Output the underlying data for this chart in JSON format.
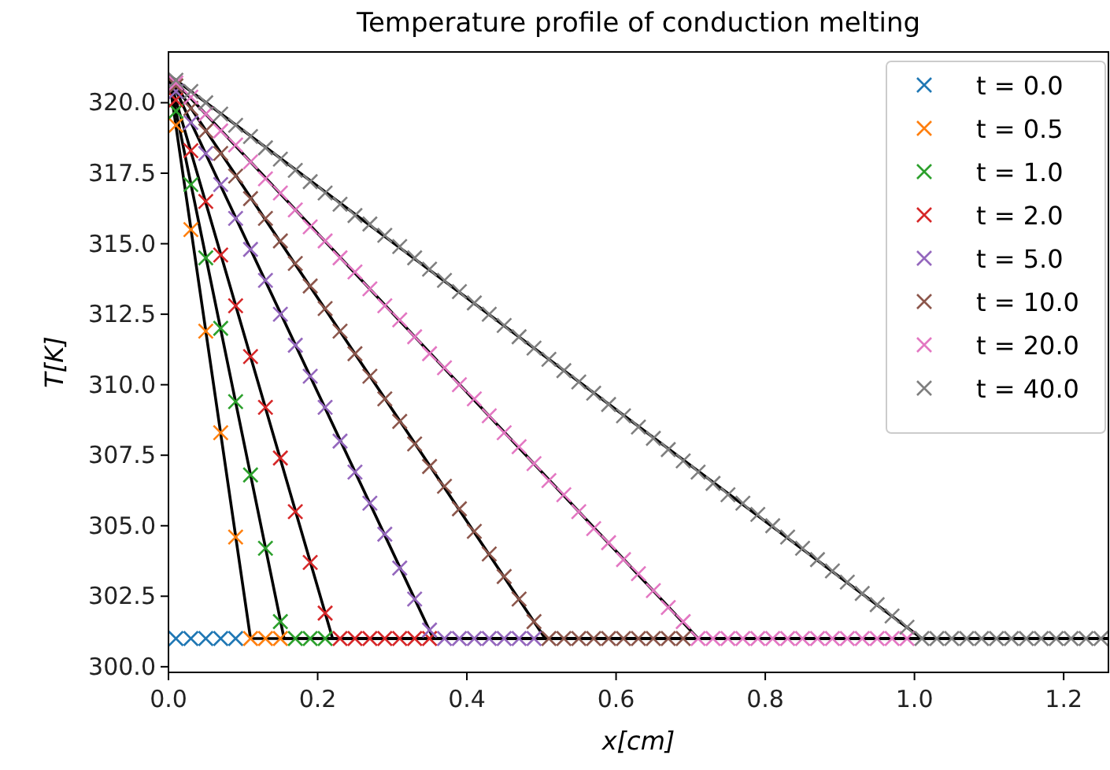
{
  "chart_data": {
    "type": "scatter",
    "title": "Temperature profile of conduction melting",
    "xlabel": "x[cm]",
    "ylabel": "T[K]",
    "legend": "top right",
    "grid": false,
    "xlim": [
      0,
      1.26
    ],
    "ylim": [
      299.8,
      321.8
    ],
    "xticks": [
      {
        "value": 0,
        "label": "0.0"
      },
      {
        "value": 0.2,
        "label": "0.2"
      },
      {
        "value": 0.4,
        "label": "0.4"
      },
      {
        "value": 0.6,
        "label": "0.6"
      },
      {
        "value": 0.8,
        "label": "0.8"
      },
      {
        "value": 1,
        "label": "1.0"
      },
      {
        "value": 1.2,
        "label": "1.2"
      }
    ],
    "yticks": [
      {
        "value": 300,
        "label": "300.0"
      },
      {
        "value": 302.5,
        "label": "302.5"
      },
      {
        "value": 305,
        "label": "305.0"
      },
      {
        "value": 307.5,
        "label": "307.5"
      },
      {
        "value": 310,
        "label": "310.0"
      },
      {
        "value": 312.5,
        "label": "312.5"
      },
      {
        "value": 315,
        "label": "315.0"
      },
      {
        "value": 317.5,
        "label": "317.5"
      },
      {
        "value": 320,
        "label": "320.0"
      }
    ],
    "x": [
      0.01,
      0.03,
      0.05,
      0.07,
      0.09,
      0.11,
      0.13,
      0.15,
      0.17,
      0.19,
      0.21,
      0.23,
      0.25,
      0.27,
      0.29,
      0.31,
      0.33,
      0.35,
      0.37,
      0.39,
      0.41,
      0.43,
      0.45,
      0.47,
      0.49,
      0.51,
      0.53,
      0.55,
      0.57,
      0.59,
      0.61,
      0.63,
      0.65,
      0.67,
      0.69,
      0.71,
      0.73,
      0.75,
      0.77,
      0.79,
      0.81,
      0.83,
      0.85,
      0.87,
      0.89,
      0.91,
      0.93,
      0.95,
      0.97,
      0.99,
      1.01,
      1.03,
      1.05,
      1.07,
      1.09,
      1.11,
      1.13,
      1.15,
      1.17,
      1.19,
      1.21,
      1.23,
      1.25
    ],
    "series": [
      {
        "type": "line",
        "color": "#000000",
        "x": [
          0,
          0.11,
          1.26
        ],
        "values": [
          321,
          301,
          301
        ]
      },
      {
        "type": "line",
        "color": "#000000",
        "x": [
          0,
          0.155,
          1.26
        ],
        "values": [
          321,
          301,
          301
        ]
      },
      {
        "type": "line",
        "color": "#000000",
        "x": [
          0,
          0.22,
          1.26
        ],
        "values": [
          321,
          301,
          301
        ]
      },
      {
        "type": "line",
        "color": "#000000",
        "x": [
          0,
          0.355,
          1.26
        ],
        "values": [
          321,
          301,
          301
        ]
      },
      {
        "type": "line",
        "color": "#000000",
        "x": [
          0,
          0.505,
          1.26
        ],
        "values": [
          321,
          301,
          301
        ]
      },
      {
        "type": "line",
        "color": "#000000",
        "x": [
          0,
          0.71,
          1.26
        ],
        "values": [
          321,
          301,
          301
        ]
      },
      {
        "type": "line",
        "color": "#000000",
        "x": [
          0,
          1.01,
          1.26
        ],
        "values": [
          321,
          301,
          301
        ]
      },
      {
        "name": "t = 0.0",
        "color": "#1f77b4",
        "marker": "cross",
        "values": [
          301,
          301,
          301,
          301,
          301,
          null,
          null,
          null,
          null,
          null,
          null,
          null,
          null,
          null,
          null,
          null,
          null,
          null,
          null,
          null,
          null,
          null,
          null,
          null,
          null,
          null,
          null,
          null,
          null,
          null,
          null,
          null,
          null,
          null,
          null,
          null,
          null,
          null,
          null,
          null,
          null,
          null,
          null,
          null,
          null,
          null,
          null,
          null,
          null,
          null,
          null,
          null,
          null,
          null,
          null,
          null,
          null,
          null,
          null,
          null,
          null,
          null,
          null
        ]
      },
      {
        "name": "t = 0.5",
        "color": "#ff7f0e",
        "marker": "cross",
        "values": [
          319.2,
          315.5,
          311.9,
          308.3,
          304.6,
          301.0,
          301,
          301,
          null,
          null,
          null,
          null,
          null,
          null,
          null,
          null,
          null,
          null,
          null,
          null,
          null,
          null,
          null,
          null,
          null,
          null,
          null,
          null,
          null,
          null,
          null,
          null,
          null,
          null,
          null,
          null,
          null,
          null,
          null,
          null,
          null,
          null,
          null,
          null,
          null,
          null,
          null,
          null,
          null,
          null,
          null,
          null,
          null,
          null,
          null,
          null,
          null,
          null,
          null,
          null,
          null,
          null,
          null
        ]
      },
      {
        "name": "t = 1.0",
        "color": "#2ca02c",
        "marker": "cross",
        "values": [
          319.7,
          317.1,
          314.5,
          312.0,
          309.4,
          306.8,
          304.2,
          301.6,
          301,
          301,
          301,
          null,
          null,
          null,
          null,
          null,
          null,
          null,
          null,
          null,
          null,
          null,
          null,
          null,
          null,
          null,
          null,
          null,
          null,
          null,
          null,
          null,
          null,
          null,
          null,
          null,
          null,
          null,
          null,
          null,
          null,
          null,
          null,
          null,
          null,
          null,
          null,
          null,
          null,
          null,
          null,
          null,
          null,
          null,
          null,
          null,
          null,
          null,
          null,
          null,
          null,
          null,
          null
        ]
      },
      {
        "name": "t = 2.0",
        "color": "#d62728",
        "marker": "cross",
        "values": [
          320.1,
          318.3,
          316.5,
          314.6,
          312.8,
          311.0,
          309.2,
          307.4,
          305.5,
          303.7,
          301.9,
          301,
          301,
          301,
          301,
          301,
          301,
          301,
          null,
          null,
          null,
          null,
          null,
          null,
          null,
          null,
          null,
          null,
          null,
          null,
          null,
          null,
          null,
          null,
          null,
          null,
          null,
          null,
          null,
          null,
          null,
          null,
          null,
          null,
          null,
          null,
          null,
          null,
          null,
          null,
          null,
          null,
          null,
          null,
          null,
          null,
          null,
          null,
          null,
          null,
          null,
          null,
          null
        ]
      },
      {
        "name": "t = 5.0",
        "color": "#9467bd",
        "marker": "cross",
        "values": [
          320.4,
          319.3,
          318.2,
          317.1,
          315.9,
          314.8,
          313.7,
          312.5,
          311.4,
          310.3,
          309.2,
          308.0,
          306.9,
          305.8,
          304.7,
          303.5,
          302.4,
          301.3,
          301,
          301,
          301,
          301,
          301,
          301,
          301,
          null,
          null,
          null,
          null,
          null,
          null,
          null,
          null,
          null,
          null,
          null,
          null,
          null,
          null,
          null,
          null,
          null,
          null,
          null,
          null,
          null,
          null,
          null,
          null,
          null,
          null,
          null,
          null,
          null,
          null,
          null,
          null,
          null,
          null,
          null,
          null,
          null,
          null
        ]
      },
      {
        "name": "t = 10.0",
        "color": "#8c564b",
        "marker": "cross",
        "values": [
          320.6,
          319.8,
          319.0,
          318.2,
          317.4,
          316.6,
          315.9,
          315.1,
          314.3,
          313.5,
          312.7,
          311.9,
          311.1,
          310.3,
          309.5,
          308.7,
          307.9,
          307.1,
          306.4,
          305.6,
          304.8,
          304.0,
          303.2,
          302.4,
          301.6,
          301,
          301,
          301,
          301,
          301,
          301,
          301,
          301,
          301,
          301,
          null,
          null,
          null,
          null,
          null,
          null,
          null,
          null,
          null,
          null,
          null,
          null,
          null,
          null,
          null,
          null,
          null,
          null,
          null,
          null,
          null,
          null,
          null,
          null,
          null,
          null,
          null,
          null
        ]
      },
      {
        "name": "t = 20.0",
        "color": "#e377c2",
        "marker": "cross",
        "values": [
          320.7,
          320.2,
          319.6,
          319.0,
          318.5,
          317.9,
          317.3,
          316.8,
          316.2,
          315.6,
          315.1,
          314.5,
          314.0,
          313.4,
          312.8,
          312.3,
          311.7,
          311.1,
          310.6,
          310.0,
          309.5,
          308.9,
          308.3,
          307.8,
          307.2,
          306.6,
          306.1,
          305.5,
          304.9,
          304.4,
          303.8,
          303.3,
          302.7,
          302.1,
          301.6,
          301,
          301,
          301,
          301,
          301,
          301,
          301,
          301,
          301,
          301,
          301,
          301,
          301,
          301,
          301,
          null,
          null,
          null,
          null,
          null,
          null,
          null,
          null,
          null,
          null,
          null,
          null,
          null
        ]
      },
      {
        "name": "t = 40.0",
        "color": "#7f7f7f",
        "marker": "cross",
        "values": [
          320.8,
          320.4,
          320.0,
          319.6,
          319.2,
          318.8,
          318.4,
          318.0,
          317.6,
          317.2,
          316.8,
          316.4,
          316.0,
          315.7,
          315.3,
          314.9,
          314.5,
          314.1,
          313.7,
          313.3,
          312.9,
          312.5,
          312.1,
          311.7,
          311.3,
          310.9,
          310.5,
          310.1,
          309.7,
          309.3,
          308.9,
          308.5,
          308.1,
          307.7,
          307.3,
          306.9,
          306.5,
          306.1,
          305.8,
          305.4,
          305.0,
          304.6,
          304.2,
          303.8,
          303.4,
          303.0,
          302.6,
          302.2,
          301.8,
          301.4,
          301,
          301,
          301,
          301,
          301,
          301,
          301,
          301,
          301,
          301,
          301,
          301,
          301
        ]
      }
    ]
  }
}
